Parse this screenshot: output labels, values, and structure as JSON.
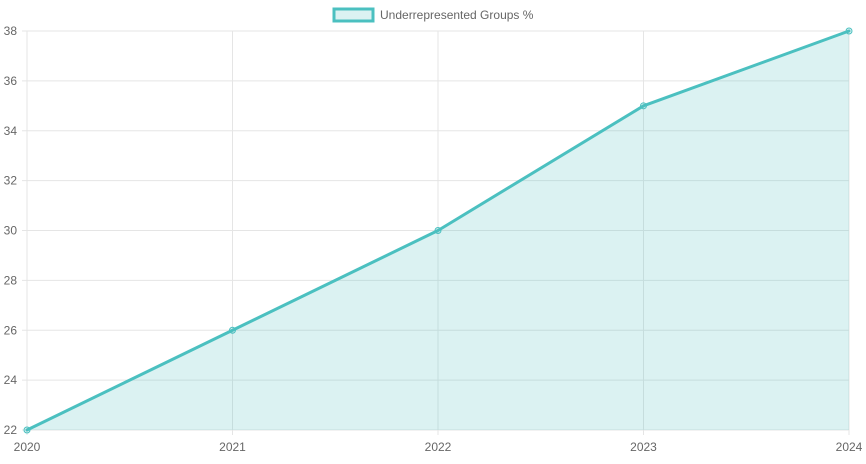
{
  "chart_data": {
    "type": "area",
    "title": "",
    "xlabel": "",
    "ylabel": "",
    "categories": [
      "2020",
      "2021",
      "2022",
      "2023",
      "2024"
    ],
    "series": [
      {
        "name": "Underrepresented Groups %",
        "values": [
          22,
          26,
          30,
          35,
          38
        ],
        "line_color": "#4BC0C0",
        "fill_color": "rgba(75,192,192,0.2)"
      }
    ],
    "ylim": [
      22,
      38
    ],
    "y_ticks": [
      22,
      24,
      26,
      28,
      30,
      32,
      34,
      36,
      38
    ],
    "grid": true,
    "legend_position": "top-center"
  },
  "colors": {
    "grid": "#e5e5e5",
    "tick_text": "#666666",
    "legend_text": "#666666"
  }
}
